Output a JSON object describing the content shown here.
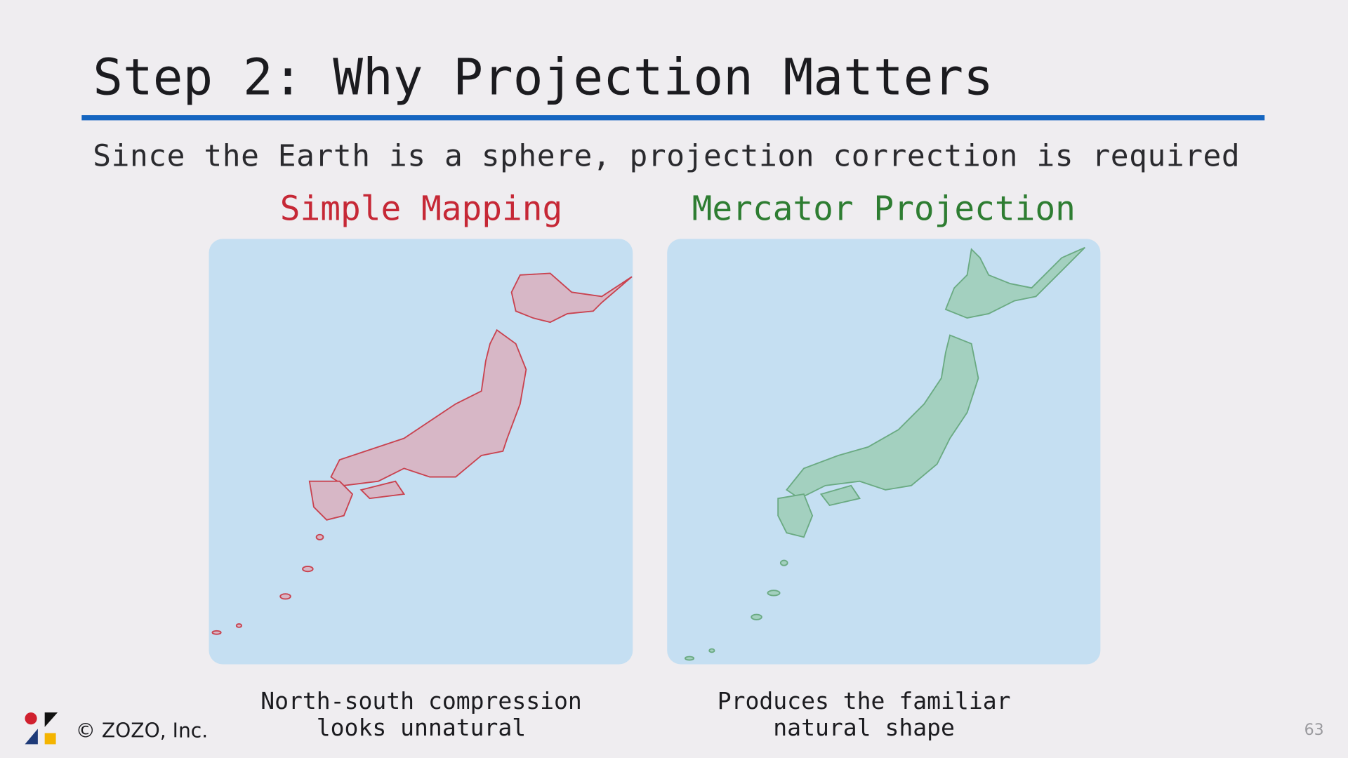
{
  "header": {
    "title": "Step 2: Why Projection Matters",
    "subtitle": "Since the Earth is a sphere, projection correction is required"
  },
  "panels": [
    {
      "heading": "Simple Mapping",
      "caption": [
        "North-south compression",
        "looks unnatural"
      ]
    },
    {
      "heading": "Mercator Projection",
      "caption": [
        "Produces the familiar",
        "natural shape"
      ]
    }
  ],
  "footer": {
    "copyright": "© ZOZO, Inc.",
    "page": "63"
  }
}
